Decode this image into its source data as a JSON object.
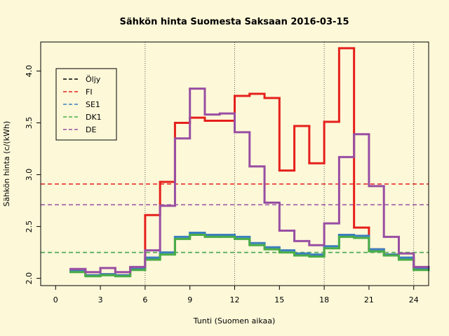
{
  "chart_data": {
    "type": "step",
    "title": "Sähkön hinta Suomesta Saksaan 2016-03-15",
    "x_label": "Tunti (Suomen aikaa)",
    "y_label": "Sähkön hinta (c/(kWh)",
    "x": [
      1,
      2,
      3,
      4,
      5,
      6,
      7,
      8,
      9,
      10,
      11,
      12,
      13,
      14,
      15,
      16,
      17,
      18,
      19,
      20,
      21,
      22,
      23,
      24
    ],
    "series": [
      {
        "name": "Öljy",
        "color": "#000000",
        "values": [
          null,
          null,
          null,
          null,
          null,
          null,
          null,
          null,
          null,
          null,
          null,
          null,
          null,
          null,
          null,
          null,
          null,
          null,
          null,
          null,
          null,
          null,
          null,
          null
        ]
      },
      {
        "name": "FI",
        "color": "#e5201c",
        "mean": 2.91,
        "values": [
          2.07,
          2.03,
          2.04,
          2.03,
          2.09,
          2.61,
          2.93,
          3.5,
          3.55,
          3.52,
          3.52,
          3.76,
          3.78,
          3.74,
          3.04,
          3.47,
          3.11,
          3.51,
          4.22,
          2.49,
          2.28,
          2.23,
          2.2,
          2.09
        ]
      },
      {
        "name": "SE1",
        "color": "#3b7fc0",
        "mean": 2.25,
        "values": [
          2.07,
          2.03,
          2.04,
          2.03,
          2.09,
          2.2,
          2.25,
          2.4,
          2.44,
          2.42,
          2.42,
          2.4,
          2.34,
          2.3,
          2.27,
          2.24,
          2.23,
          2.31,
          2.42,
          2.41,
          2.28,
          2.23,
          2.2,
          2.1
        ]
      },
      {
        "name": "DK1",
        "color": "#4aad47",
        "mean": 2.25,
        "values": [
          2.06,
          2.02,
          2.03,
          2.02,
          2.08,
          2.18,
          2.23,
          2.38,
          2.42,
          2.4,
          2.4,
          2.38,
          2.32,
          2.28,
          2.25,
          2.22,
          2.21,
          2.29,
          2.4,
          2.39,
          2.26,
          2.22,
          2.18,
          2.08
        ]
      },
      {
        "name": "DE",
        "color": "#984ea3",
        "mean": 2.71,
        "values": [
          2.09,
          2.06,
          2.1,
          2.06,
          2.11,
          2.27,
          2.7,
          3.35,
          3.83,
          3.58,
          3.59,
          3.41,
          3.08,
          2.73,
          2.46,
          2.36,
          2.32,
          2.53,
          3.17,
          3.39,
          2.89,
          2.4,
          2.24,
          2.11
        ]
      }
    ],
    "xlim": [
      -1,
      25
    ],
    "ylim": [
      1.93,
      4.28
    ],
    "xticks": [
      0,
      3,
      6,
      9,
      12,
      15,
      18,
      21,
      24
    ],
    "yticks": [
      {
        "value": 2.0,
        "label": "2.0"
      },
      {
        "value": 2.5,
        "label": "2.5"
      },
      {
        "value": 3.0,
        "label": "3.0"
      },
      {
        "value": 3.5,
        "label": "3.5"
      },
      {
        "value": 4.0,
        "label": "4.0"
      }
    ],
    "vlines": [
      6,
      12,
      18,
      24
    ],
    "legend": "top-left"
  }
}
